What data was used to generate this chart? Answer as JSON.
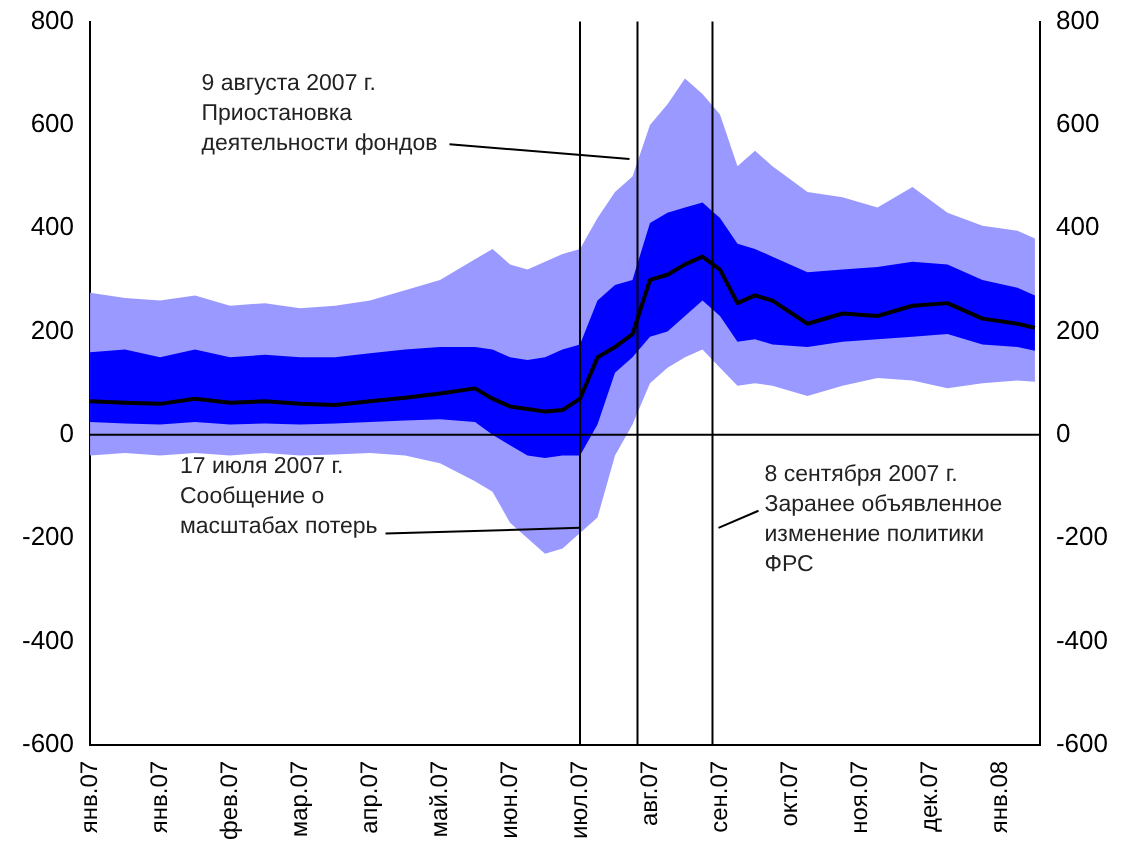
{
  "chart_data": {
    "type": "line",
    "x": [
      "2007-01-02",
      "2007-01-16",
      "2007-01-30",
      "2007-02-13",
      "2007-02-27",
      "2007-03-13",
      "2007-03-27",
      "2007-04-10",
      "2007-04-24",
      "2007-05-08",
      "2007-05-22",
      "2007-06-05",
      "2007-06-12",
      "2007-06-19",
      "2007-06-26",
      "2007-07-03",
      "2007-07-10",
      "2007-07-17",
      "2007-07-24",
      "2007-07-31",
      "2007-08-07",
      "2007-08-14",
      "2007-08-21",
      "2007-08-28",
      "2007-09-04",
      "2007-09-11",
      "2007-09-18",
      "2007-09-25",
      "2007-10-02",
      "2007-10-16",
      "2007-10-30",
      "2007-11-13",
      "2007-11-27",
      "2007-12-11",
      "2007-12-25",
      "2008-01-08",
      "2008-01-15"
    ],
    "series": [
      {
        "type": "line",
        "color": "#9999ff",
        "values": [
          null,
          null,
          null,
          null,
          null,
          null,
          null,
          null,
          null,
          null,
          null,
          null,
          null,
          null,
          null,
          null,
          null,
          null,
          null,
          null,
          null,
          null,
          null,
          null,
          null,
          null,
          null,
          null,
          null,
          null,
          null,
          null,
          null,
          null,
          null,
          null,
          null
        ],
        "upper": [
          275,
          265,
          260,
          270,
          250,
          255,
          245,
          250,
          260,
          280,
          300,
          340,
          360,
          330,
          320,
          335,
          350,
          360,
          420,
          470,
          500,
          600,
          640,
          690,
          660,
          620,
          520,
          550,
          520,
          470,
          460,
          440,
          480,
          430,
          405,
          395,
          380
        ],
        "lower": [
          -40,
          -35,
          -40,
          -35,
          -40,
          -35,
          -40,
          -38,
          -35,
          -40,
          -55,
          -90,
          -110,
          -170,
          -200,
          -230,
          -220,
          -190,
          -160,
          -40,
          20,
          100,
          130,
          150,
          165,
          130,
          95,
          100,
          95,
          75,
          95,
          110,
          105,
          90,
          100,
          105,
          103
        ]
      },
      {
        "type": "line",
        "color": "#0000ff",
        "values": [
          null,
          null,
          null,
          null,
          null,
          null,
          null,
          null,
          null,
          null,
          null,
          null,
          null,
          null,
          null,
          null,
          null,
          null,
          null,
          null,
          null,
          null,
          null,
          null,
          null,
          null,
          null,
          null,
          null,
          null,
          null,
          null,
          null,
          null,
          null,
          null,
          null
        ],
        "upper": [
          160,
          165,
          150,
          165,
          150,
          155,
          150,
          150,
          158,
          165,
          170,
          170,
          165,
          150,
          145,
          150,
          165,
          175,
          260,
          290,
          300,
          410,
          430,
          440,
          450,
          420,
          370,
          360,
          345,
          315,
          320,
          325,
          335,
          330,
          300,
          285,
          270
        ],
        "lower": [
          25,
          22,
          20,
          25,
          20,
          22,
          20,
          22,
          25,
          28,
          30,
          25,
          0,
          -20,
          -40,
          -45,
          -40,
          -40,
          20,
          120,
          150,
          190,
          200,
          230,
          260,
          230,
          180,
          185,
          175,
          170,
          180,
          185,
          190,
          195,
          175,
          170,
          163
        ]
      },
      {
        "type": "line",
        "color": "#000000",
        "values": [
          65,
          62,
          60,
          70,
          62,
          65,
          60,
          58,
          65,
          72,
          80,
          90,
          70,
          55,
          50,
          45,
          48,
          70,
          150,
          170,
          195,
          300,
          310,
          330,
          345,
          320,
          255,
          270,
          260,
          215,
          235,
          230,
          250,
          255,
          225,
          215,
          207
        ]
      }
    ],
    "xlim": [
      "2007-01-02",
      "2008-01-17"
    ],
    "xticks": [
      {
        "value": "2007-01-02",
        "label": "янв.07"
      },
      {
        "value": "2007-01-30",
        "label": "янв.07"
      },
      {
        "value": "2007-02-27",
        "label": "фев.07"
      },
      {
        "value": "2007-03-27",
        "label": "мар.07"
      },
      {
        "value": "2007-04-24",
        "label": "апр.07"
      },
      {
        "value": "2007-05-22",
        "label": "май.07"
      },
      {
        "value": "2007-06-19",
        "label": "июн.07"
      },
      {
        "value": "2007-07-17",
        "label": "июл.07"
      },
      {
        "value": "2007-08-14",
        "label": "авг.07"
      },
      {
        "value": "2007-09-11",
        "label": "сен.07"
      },
      {
        "value": "2007-10-09",
        "label": "окт.07"
      },
      {
        "value": "2007-11-06",
        "label": "ноя.07"
      },
      {
        "value": "2007-12-04",
        "label": "дек.07"
      },
      {
        "value": "2008-01-01",
        "label": "янв.08"
      }
    ],
    "ylim": [
      -600,
      800
    ],
    "yticks": [
      -600,
      -400,
      -200,
      0,
      200,
      400,
      600,
      800
    ],
    "y2lim": [
      -600,
      800
    ],
    "y2ticks": [
      -600,
      -400,
      -200,
      0,
      200,
      400,
      600,
      800
    ],
    "ref_lines": [
      {
        "axis": "y",
        "value": 0,
        "color": "#000000"
      },
      {
        "axis": "x",
        "value": "2007-07-17",
        "color": "#000000",
        "label": "17 июля 2007 г.\nСообщение о\nмасштабах потерь"
      },
      {
        "axis": "x",
        "value": "2007-08-09",
        "color": "#000000",
        "label": "9 августа 2007 г.\nПриостановка\nдеятельности фондов"
      },
      {
        "axis": "x",
        "value": "2007-09-08",
        "color": "#000000",
        "label": "8 сентября 2007 г.\nЗаранее объявленное\nизменение политики\nФРС"
      }
    ],
    "grid": false,
    "legend": false
  }
}
